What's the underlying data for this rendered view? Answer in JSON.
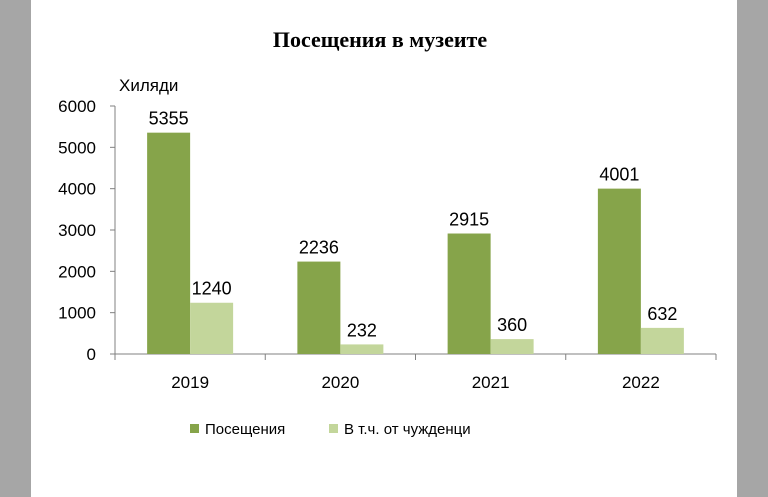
{
  "chart_data": {
    "type": "bar",
    "title": "Посещения в музеите",
    "ylabel": "Хиляди",
    "xlabel": "",
    "categories": [
      "2019",
      "2020",
      "2021",
      "2022"
    ],
    "series": [
      {
        "name": "Посещения",
        "values": [
          5355,
          2236,
          2915,
          4001
        ],
        "color": "#86a44a"
      },
      {
        "name": "В т.ч. от чужденци",
        "values": [
          1240,
          232,
          360,
          632
        ],
        "color": "#c3d69b"
      }
    ],
    "ylim": [
      0,
      6000
    ],
    "yticks": [
      "0",
      "1000",
      "2000",
      "3000",
      "4000",
      "5000",
      "6000"
    ],
    "grid": false,
    "legend_position": "bottom",
    "data_labels": true
  }
}
